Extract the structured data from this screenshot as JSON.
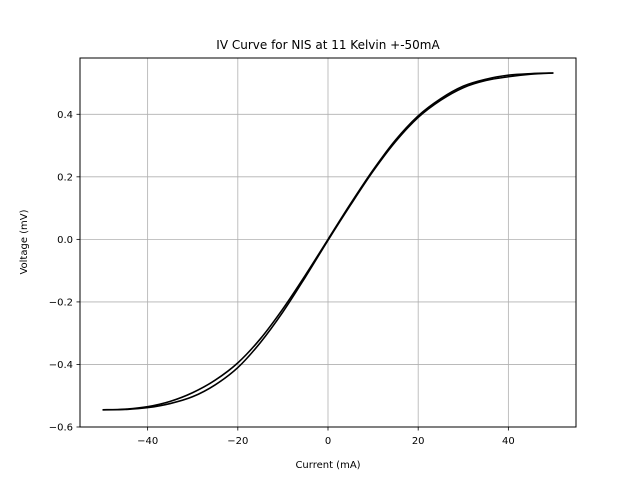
{
  "chart_data": {
    "type": "line",
    "title": "IV Curve for NIS at 11 Kelvin +-50mA",
    "xlabel": "Current (mA)",
    "ylabel": "Voltage (mV)",
    "xlim": [
      -55,
      55
    ],
    "ylim": [
      -0.6,
      0.58
    ],
    "xticks": [
      -40,
      -20,
      0,
      20,
      40
    ],
    "xtick_labels": [
      "−40",
      "−20",
      "0",
      "20",
      "40"
    ],
    "yticks": [
      -0.6,
      -0.4,
      -0.2,
      0.0,
      0.2,
      0.4
    ],
    "ytick_labels": [
      "−0.6",
      "−0.4",
      "−0.2",
      "0.0",
      "0.2",
      "0.4"
    ],
    "grid": true,
    "line_color": "#000000",
    "grid_color": "#b0b0b0",
    "series": [
      {
        "x": [
          -50,
          -45,
          -40,
          -35,
          -30,
          -25,
          -20,
          -15,
          -10,
          -5,
          0,
          5,
          10,
          15,
          20,
          25,
          30,
          35,
          40,
          45,
          50
        ],
        "y": [
          -0.545,
          -0.543,
          -0.535,
          -0.518,
          -0.49,
          -0.45,
          -0.395,
          -0.318,
          -0.222,
          -0.114,
          0.0,
          0.114,
          0.222,
          0.318,
          0.395,
          0.45,
          0.49,
          0.512,
          0.525,
          0.53,
          0.532
        ]
      },
      {
        "x": [
          50,
          45,
          40,
          35,
          30,
          25,
          20,
          15,
          10,
          5,
          0,
          -5,
          -10,
          -15,
          -20,
          -25,
          -30,
          -35,
          -40,
          -45,
          -50
        ],
        "y": [
          0.532,
          0.528,
          0.52,
          0.508,
          0.485,
          0.445,
          0.39,
          0.313,
          0.218,
          0.11,
          -0.003,
          -0.12,
          -0.232,
          -0.33,
          -0.41,
          -0.465,
          -0.503,
          -0.525,
          -0.538,
          -0.544,
          -0.545
        ]
      }
    ]
  }
}
